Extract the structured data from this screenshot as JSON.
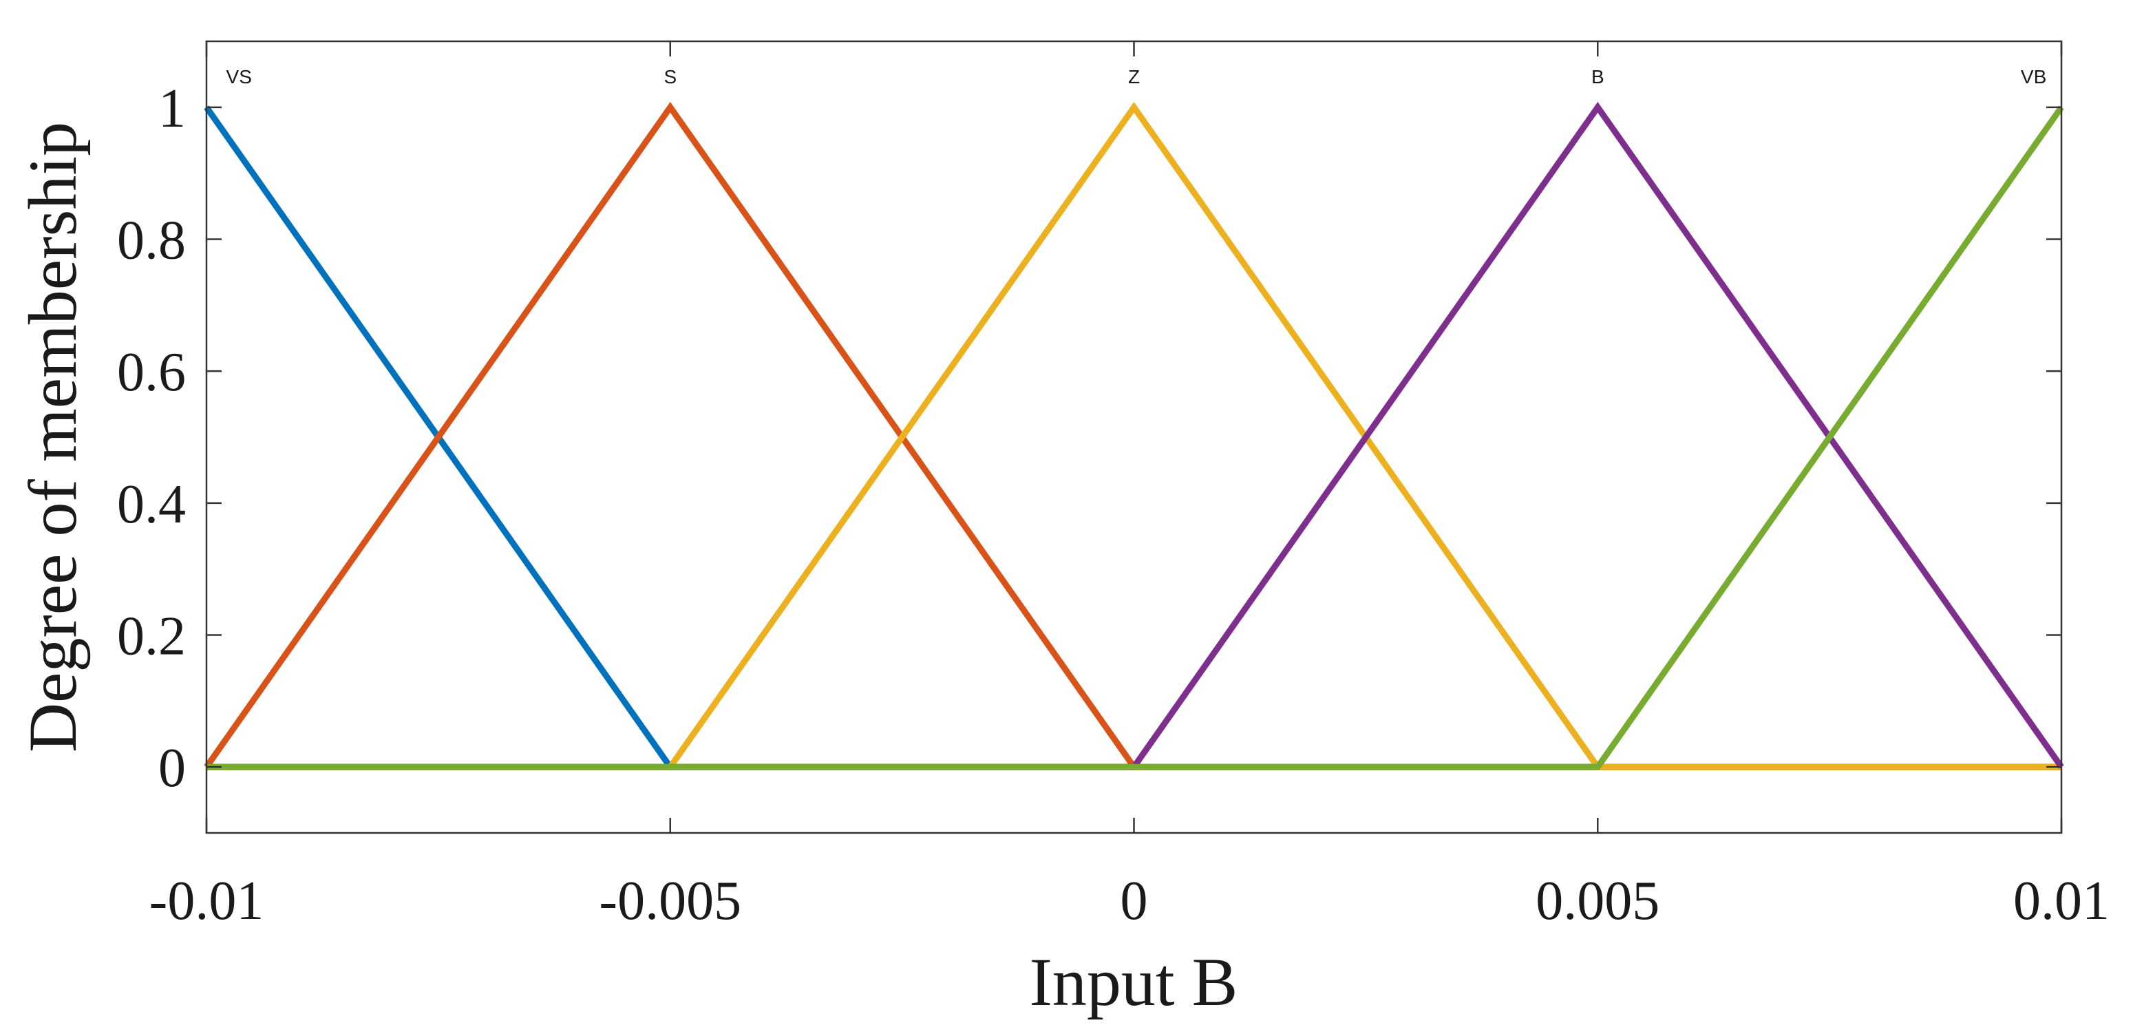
{
  "chart_data": {
    "type": "line",
    "xlabel": "Input B",
    "ylabel": "Degree of membership",
    "xlim": [
      -0.01,
      0.01
    ],
    "ylim": [
      -0.1,
      1.1
    ],
    "xticks": [
      -0.01,
      -0.005,
      0,
      0.005,
      0.01
    ],
    "xtick_labels": [
      "-0.01",
      "-0.005",
      "0",
      "0.005",
      "0.01"
    ],
    "yticks": [
      0,
      0.2,
      0.4,
      0.6,
      0.8,
      1
    ],
    "ytick_labels": [
      "0",
      "0.2",
      "0.4",
      "0.6",
      "0.8",
      "1"
    ],
    "grid": false,
    "series": [
      {
        "name": "VS",
        "color": "#0072BD",
        "label_x": -0.00965,
        "x": [
          -0.01,
          -0.005,
          0.01
        ],
        "y": [
          1,
          0,
          0
        ]
      },
      {
        "name": "S",
        "color": "#D95319",
        "label_x": -0.005,
        "x": [
          -0.01,
          -0.005,
          0,
          0.01
        ],
        "y": [
          0,
          1,
          0,
          0
        ]
      },
      {
        "name": "Z",
        "color": "#EDB120",
        "label_x": 0,
        "x": [
          -0.01,
          -0.005,
          0,
          0.005,
          0.01
        ],
        "y": [
          0,
          0,
          1,
          0,
          0
        ]
      },
      {
        "name": "B",
        "color": "#7E2F8E",
        "label_x": 0.005,
        "x": [
          -0.01,
          0,
          0.005,
          0.01
        ],
        "y": [
          0,
          0,
          1,
          0
        ]
      },
      {
        "name": "VB",
        "color": "#77AC30",
        "label_x": 0.0097,
        "x": [
          -0.01,
          0.005,
          0.01
        ],
        "y": [
          0,
          0,
          1
        ]
      }
    ]
  }
}
